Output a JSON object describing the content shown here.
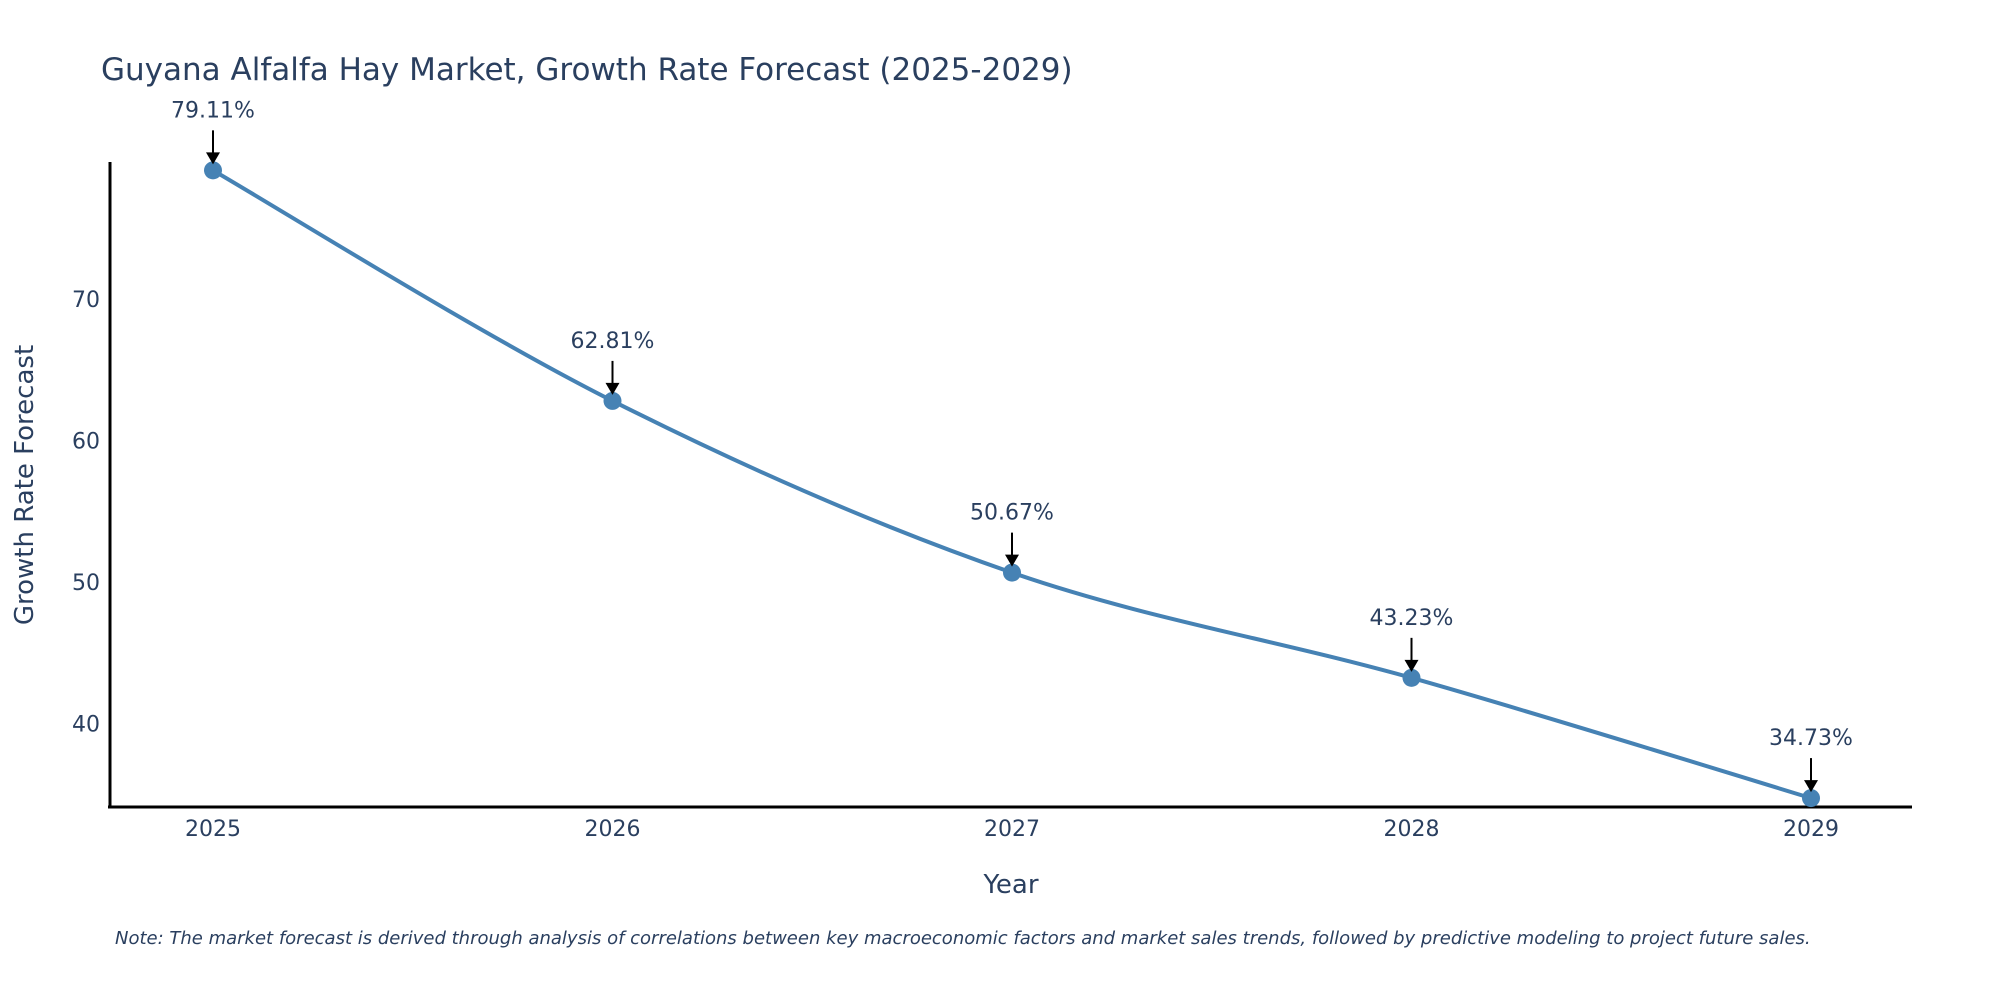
{
  "chart_data": {
    "type": "line",
    "title": "Guyana Alfalfa Hay Market, Growth Rate Forecast (2025-2029)",
    "xlabel": "Year",
    "ylabel": "Growth Rate Forecast",
    "categories": [
      "2025",
      "2026",
      "2027",
      "2028",
      "2029"
    ],
    "series": [
      {
        "name": "Growth Rate Forecast",
        "values": [
          79.11,
          62.81,
          50.67,
          43.23,
          34.73
        ],
        "labels": [
          "79.11%",
          "62.81%",
          "50.67%",
          "43.23%",
          "34.73%"
        ],
        "color": "#4682b4"
      }
    ],
    "ylim": [
      34.1,
      79.7
    ],
    "yticks": [
      40,
      50,
      60,
      70
    ],
    "grid": false,
    "legend": "none",
    "note": "Note: The market forecast is derived through analysis of correlations between key macroeconomic factors and market sales trends, followed by predictive modeling to project future sales."
  }
}
